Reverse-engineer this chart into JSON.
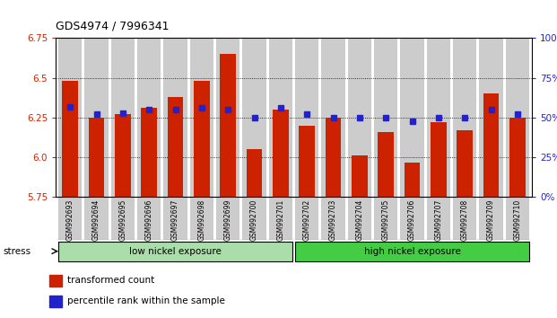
{
  "title": "GDS4974 / 7996341",
  "samples": [
    "GSM992693",
    "GSM992694",
    "GSM992695",
    "GSM992696",
    "GSM992697",
    "GSM992698",
    "GSM992699",
    "GSM992700",
    "GSM992701",
    "GSM992702",
    "GSM992703",
    "GSM992704",
    "GSM992705",
    "GSM992706",
    "GSM992707",
    "GSM992708",
    "GSM992709",
    "GSM992710"
  ],
  "red_values": [
    6.48,
    6.25,
    6.27,
    6.31,
    6.38,
    6.48,
    6.65,
    6.05,
    6.3,
    6.2,
    6.25,
    6.01,
    6.16,
    5.97,
    6.22,
    6.17,
    6.4,
    6.25
  ],
  "blue_values": [
    6.32,
    6.27,
    6.28,
    6.3,
    6.3,
    6.31,
    6.3,
    6.25,
    6.31,
    6.27,
    6.25,
    6.25,
    6.25,
    6.23,
    6.25,
    6.25,
    6.3,
    6.27
  ],
  "ymin": 5.75,
  "ymax": 6.75,
  "yticks": [
    5.75,
    6.0,
    6.25,
    6.5,
    6.75
  ],
  "right_yticks_pct": [
    0,
    25,
    50,
    75,
    100
  ],
  "group1_label": "low nickel exposure",
  "group2_label": "high nickel exposure",
  "group1_count": 9,
  "bar_color": "#cc2200",
  "dot_color": "#2222cc",
  "stress_label": "stress",
  "legend1": "transformed count",
  "legend2": "percentile rank within the sample",
  "bar_width": 0.6,
  "group1_color": "#aaddaa",
  "group2_color": "#44cc44"
}
